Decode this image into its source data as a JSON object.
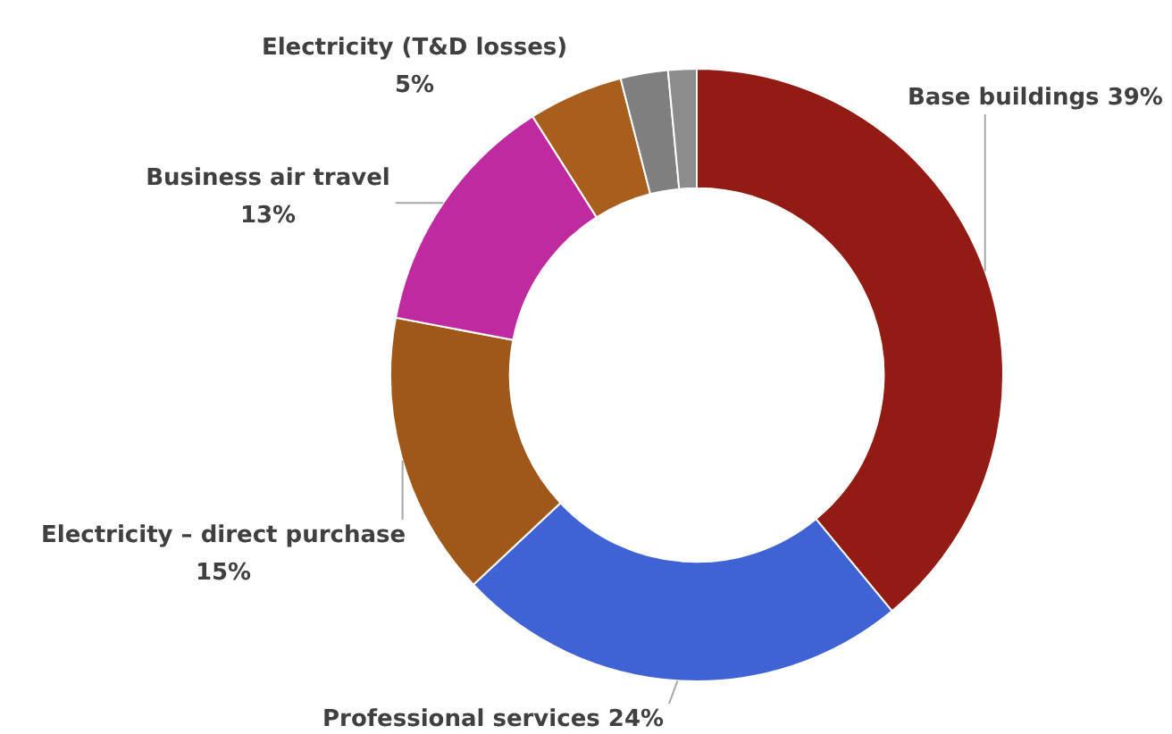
{
  "chart_data": {
    "type": "donut",
    "categories": [
      "Base buildings",
      "Professional services",
      "Electricity – direct purchase",
      "Business air travel",
      "Electricity (T&D losses)",
      null,
      null
    ],
    "values": [
      39,
      24,
      15,
      13,
      5,
      2.5,
      1.5
    ],
    "value_labels": [
      "39%",
      "24%",
      "15%",
      "13%",
      "5%",
      null,
      null
    ],
    "colors": [
      "#921b13",
      "#3f63d4",
      "#a0581a",
      "#c02aa0",
      "#a85e1c",
      "#7f7f7f",
      "#8c8c8c"
    ],
    "legend": false
  }
}
